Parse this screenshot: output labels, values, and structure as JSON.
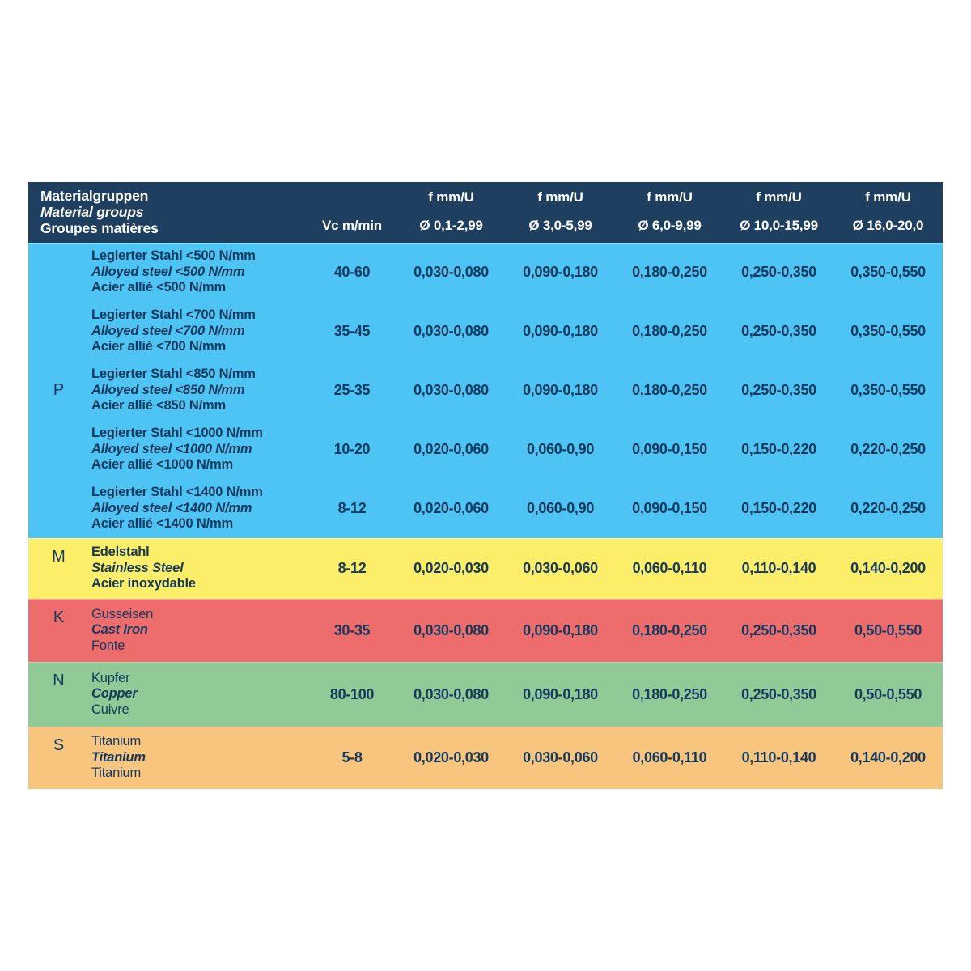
{
  "table": {
    "header": {
      "bg": "#1e3f5f",
      "text_color": "#ffffff",
      "title_lines": [
        "Materialgruppen",
        "Material groups",
        "Groupes matières"
      ],
      "vc_label": "Vc m/min",
      "f_label": "f mm/U",
      "diameter_labels": [
        "Ø 0,1-2,99",
        "Ø 3,0-5,99",
        "Ø 6,0-9,99",
        "Ø 10,0-15,99",
        "Ø 16,0-20,0"
      ]
    },
    "body_text_color": "#15395d",
    "groups": [
      {
        "letter": "P",
        "color": "#4ec4f5",
        "rows": [
          {
            "lines": [
              "Legierter Stahl <500 N/mm",
              "Alloyed steel <500 N/mm",
              "Acier allié <500 N/mm"
            ],
            "vc": "40-60",
            "f": [
              "0,030-0,080",
              "0,090-0,180",
              "0,180-0,250",
              "0,250-0,350",
              "0,350-0,550"
            ]
          },
          {
            "lines": [
              "Legierter Stahl <700 N/mm",
              "Alloyed steel <700 N/mm",
              "Acier allié <700 N/mm"
            ],
            "vc": "35-45",
            "f": [
              "0,030-0,080",
              "0,090-0,180",
              "0,180-0,250",
              "0,250-0,350",
              "0,350-0,550"
            ]
          },
          {
            "lines": [
              "Legierter Stahl <850 N/mm",
              "Alloyed steel <850 N/mm",
              "Acier allié <850 N/mm"
            ],
            "vc": "25-35",
            "f": [
              "0,030-0,080",
              "0,090-0,180",
              "0,180-0,250",
              "0,250-0,350",
              "0,350-0,550"
            ]
          },
          {
            "lines": [
              "Legierter Stahl <1000 N/mm",
              "Alloyed steel <1000 N/mm",
              "Acier allié <1000 N/mm"
            ],
            "vc": "10-20",
            "f": [
              "0,020-0,060",
              "0,060-0,90",
              "0,090-0,150",
              "0,150-0,220",
              "0,220-0,250"
            ]
          },
          {
            "lines": [
              "Legierter Stahl <1400 N/mm",
              "Alloyed steel <1400 N/mm",
              "Acier allié <1400 N/mm"
            ],
            "vc": "8-12",
            "f": [
              "0,020-0,060",
              "0,060-0,90",
              "0,090-0,150",
              "0,150-0,220",
              "0,220-0,250"
            ]
          }
        ]
      },
      {
        "letter": "M",
        "color": "#fdee6a",
        "rows": [
          {
            "lines": [
              "Edelstahl",
              "Stainless Steel",
              "Acier inoxydable"
            ],
            "vc": "8-12",
            "f": [
              "0,020-0,030",
              "0,030-0,060",
              "0,060-0,110",
              "0,110-0,140",
              "0,140-0,200"
            ]
          }
        ]
      },
      {
        "letter": "K",
        "color": "#ed6d6d",
        "rows": [
          {
            "lines": [
              "Gusseisen",
              "Cast Iron",
              "Fonte"
            ],
            "vc": "30-35",
            "f": [
              "0,030-0,080",
              "0,090-0,180",
              "0,180-0,250",
              "0,250-0,350",
              "0,50-0,550"
            ]
          }
        ]
      },
      {
        "letter": "N",
        "color": "#90ca96",
        "rows": [
          {
            "lines": [
              "Kupfer",
              "Copper",
              "Cuivre"
            ],
            "vc": "80-100",
            "f": [
              "0,030-0,080",
              "0,090-0,180",
              "0,180-0,250",
              "0,250-0,350",
              "0,50-0,550"
            ]
          }
        ]
      },
      {
        "letter": "S",
        "color": "#f8c57e",
        "rows": [
          {
            "lines": [
              "Titanium",
              "Titanium",
              "Titanium"
            ],
            "vc": "5-8",
            "f": [
              "0,020-0,030",
              "0,030-0,060",
              "0,060-0,110",
              "0,110-0,140",
              "0,140-0,200"
            ]
          }
        ]
      }
    ]
  }
}
